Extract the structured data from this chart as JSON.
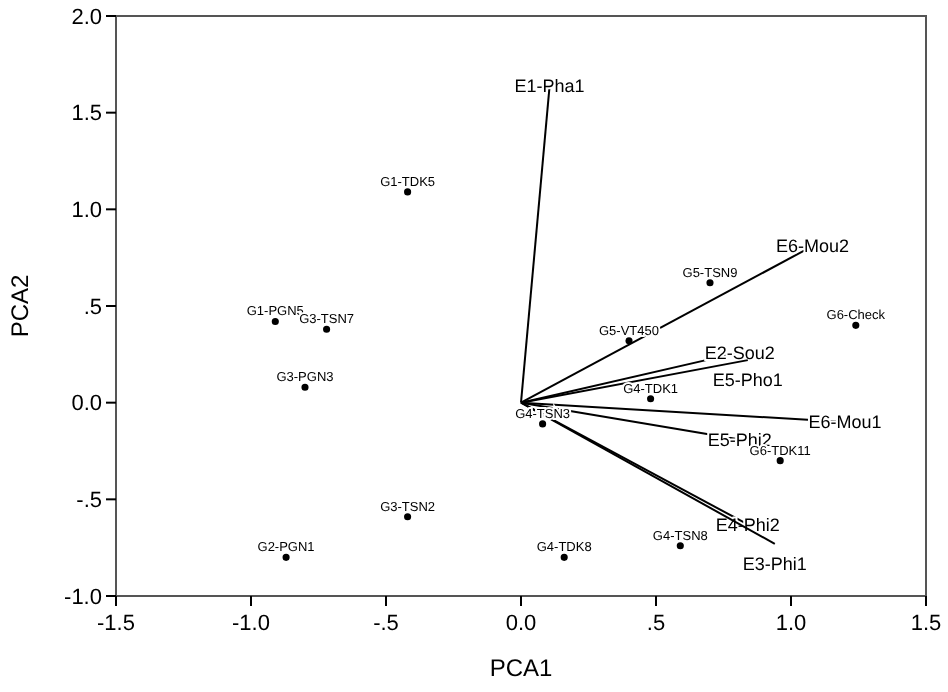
{
  "chart_data": {
    "type": "scatter",
    "xlabel": "PCA1",
    "ylabel": "PCA2",
    "xlim": [
      -1.5,
      1.5
    ],
    "ylim": [
      -1.0,
      2.0
    ],
    "xticks": [
      {
        "value": -1.5,
        "label": "-1.5"
      },
      {
        "value": -1.0,
        "label": "-1.0"
      },
      {
        "value": -0.5,
        "label": "-.5"
      },
      {
        "value": 0,
        "label": "0.0"
      },
      {
        "value": 0.5,
        "label": ".5"
      },
      {
        "value": 1.0,
        "label": "1.0"
      },
      {
        "value": 1.5,
        "label": "1.5"
      }
    ],
    "yticks": [
      {
        "value": -1.0,
        "label": "-1.0"
      },
      {
        "value": -0.5,
        "label": "-.5"
      },
      {
        "value": 0,
        "label": "0.0"
      },
      {
        "value": 0.5,
        "label": ".5"
      },
      {
        "value": 1.0,
        "label": "1.0"
      },
      {
        "value": 1.5,
        "label": "1.5"
      },
      {
        "value": 2.0,
        "label": "2.0"
      }
    ],
    "grid": false,
    "legend": false,
    "series": [
      {
        "marker": "circle",
        "color": "#000000",
        "x": [
          -0.42,
          -0.91,
          -0.72,
          -0.8,
          -0.42,
          -0.87,
          0.08,
          0.16,
          0.59,
          0.48,
          0.4,
          0.7,
          1.24,
          0.96
        ],
        "values": [
          1.09,
          0.42,
          0.38,
          0.08,
          -0.59,
          -0.8,
          -0.11,
          -0.8,
          -0.74,
          0.02,
          0.32,
          0.62,
          0.4,
          -0.3
        ],
        "value_labels": [
          "G1-TDK5",
          "G1-PGN5",
          "G3-TSN7",
          "G3-PGN3",
          "G3-TSN2",
          "G2-PGN1",
          "G4-TSN3",
          "G4-TDK8",
          "G4-TSN8",
          "G4-TDK1",
          "G5-VT450",
          "G5-TSN9",
          "G6-Check",
          "G6-TDK11"
        ]
      },
      {
        "type": "line",
        "name": "E1-Pha1",
        "color": "#000000",
        "x": [
          0,
          0.106
        ],
        "values": [
          0,
          1.64
        ]
      },
      {
        "type": "line",
        "name": "E6-Mou2",
        "color": "#000000",
        "x": [
          0,
          1.08
        ],
        "values": [
          0,
          0.81
        ]
      },
      {
        "type": "line",
        "name": "E2-Sou2",
        "color": "#000000",
        "x": [
          0,
          0.81
        ],
        "values": [
          0,
          0.26
        ]
      },
      {
        "type": "line",
        "name": "E5-Pho1",
        "color": "#000000",
        "x": [
          0,
          0.84
        ],
        "values": [
          0,
          0.22
        ]
      },
      {
        "type": "line",
        "name": "E6-Mou1",
        "color": "#000000",
        "x": [
          0,
          1.2
        ],
        "values": [
          0,
          -0.1
        ]
      },
      {
        "type": "line",
        "name": "E5-Phi2",
        "color": "#000000",
        "x": [
          0,
          0.81
        ],
        "values": [
          0,
          -0.19
        ]
      },
      {
        "type": "line",
        "name": "E4-Phi2",
        "color": "#000000",
        "x": [
          0,
          0.84
        ],
        "values": [
          0,
          -0.63
        ]
      },
      {
        "type": "line",
        "name": "E3-Phi1",
        "color": "#000000",
        "x": [
          0,
          0.94
        ],
        "values": [
          0,
          -0.73
        ]
      }
    ]
  }
}
